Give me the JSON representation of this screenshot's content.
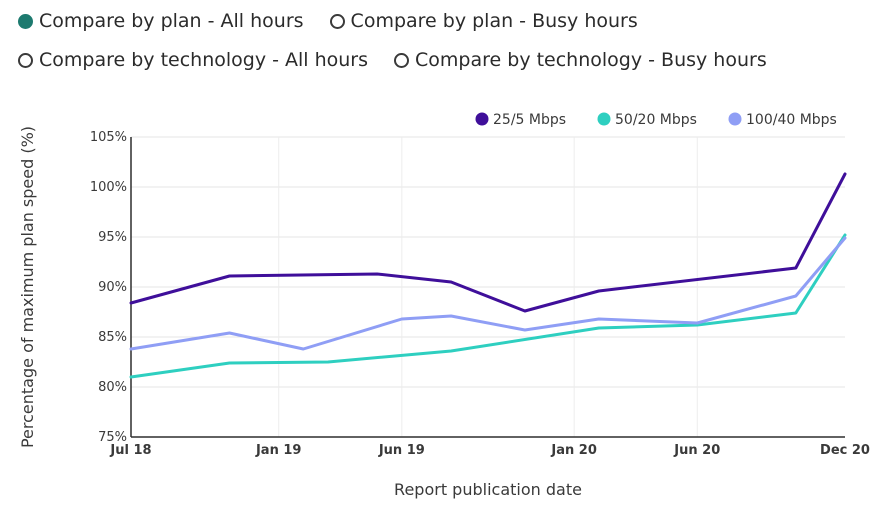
{
  "controls": {
    "options": [
      {
        "label": "Compare by plan - All hours",
        "checked": true
      },
      {
        "label": "Compare by plan - Busy hours",
        "checked": false
      },
      {
        "label": "Compare by technology - All hours",
        "checked": false
      },
      {
        "label": "Compare by technology - Busy hours",
        "checked": false
      }
    ]
  },
  "chart_data": {
    "type": "line",
    "xlabel": "Report publication date",
    "ylabel": "Percentage of maximum plan speed (%)",
    "ylim": [
      75,
      105
    ],
    "yticks": [
      "75%",
      "80%",
      "85%",
      "90%",
      "95%",
      "100%",
      "105%"
    ],
    "xrange": [
      "2018-07",
      "2020-12"
    ],
    "xticks": [
      {
        "label": "Jul 18",
        "date": "2018-07"
      },
      {
        "label": "Jan 19",
        "date": "2019-01"
      },
      {
        "label": "Jun 19",
        "date": "2019-06"
      },
      {
        "label": "Jan 20",
        "date": "2020-01"
      },
      {
        "label": "Jun 20",
        "date": "2020-06"
      },
      {
        "label": "Dec 20",
        "date": "2020-12"
      }
    ],
    "grid": true,
    "legend_position": "top-right",
    "series": [
      {
        "name": "25/5 Mbps",
        "color": "#3f0f9a",
        "points": [
          {
            "x": "2018-07",
            "y": 88.4
          },
          {
            "x": "2018-11",
            "y": 91.1
          },
          {
            "x": "2019-05",
            "y": 91.3
          },
          {
            "x": "2019-08",
            "y": 90.5
          },
          {
            "x": "2019-11",
            "y": 87.6
          },
          {
            "x": "2020-02",
            "y": 89.6
          },
          {
            "x": "2020-10",
            "y": 91.9
          },
          {
            "x": "2020-12",
            "y": 101.3
          }
        ]
      },
      {
        "name": "50/20 Mbps",
        "color": "#2ecfc0",
        "points": [
          {
            "x": "2018-07",
            "y": 81.0
          },
          {
            "x": "2018-11",
            "y": 82.4
          },
          {
            "x": "2019-03",
            "y": 82.5
          },
          {
            "x": "2019-08",
            "y": 83.6
          },
          {
            "x": "2020-02",
            "y": 85.9
          },
          {
            "x": "2020-06",
            "y": 86.2
          },
          {
            "x": "2020-10",
            "y": 87.4
          },
          {
            "x": "2020-12",
            "y": 95.2
          }
        ]
      },
      {
        "name": "100/40 Mbps",
        "color": "#8f9ef5",
        "points": [
          {
            "x": "2018-07",
            "y": 83.8
          },
          {
            "x": "2018-11",
            "y": 85.4
          },
          {
            "x": "2019-02",
            "y": 83.8
          },
          {
            "x": "2019-06",
            "y": 86.8
          },
          {
            "x": "2019-08",
            "y": 87.1
          },
          {
            "x": "2019-11",
            "y": 85.7
          },
          {
            "x": "2020-02",
            "y": 86.8
          },
          {
            "x": "2020-06",
            "y": 86.4
          },
          {
            "x": "2020-10",
            "y": 89.1
          },
          {
            "x": "2020-12",
            "y": 94.9
          }
        ]
      }
    ]
  }
}
